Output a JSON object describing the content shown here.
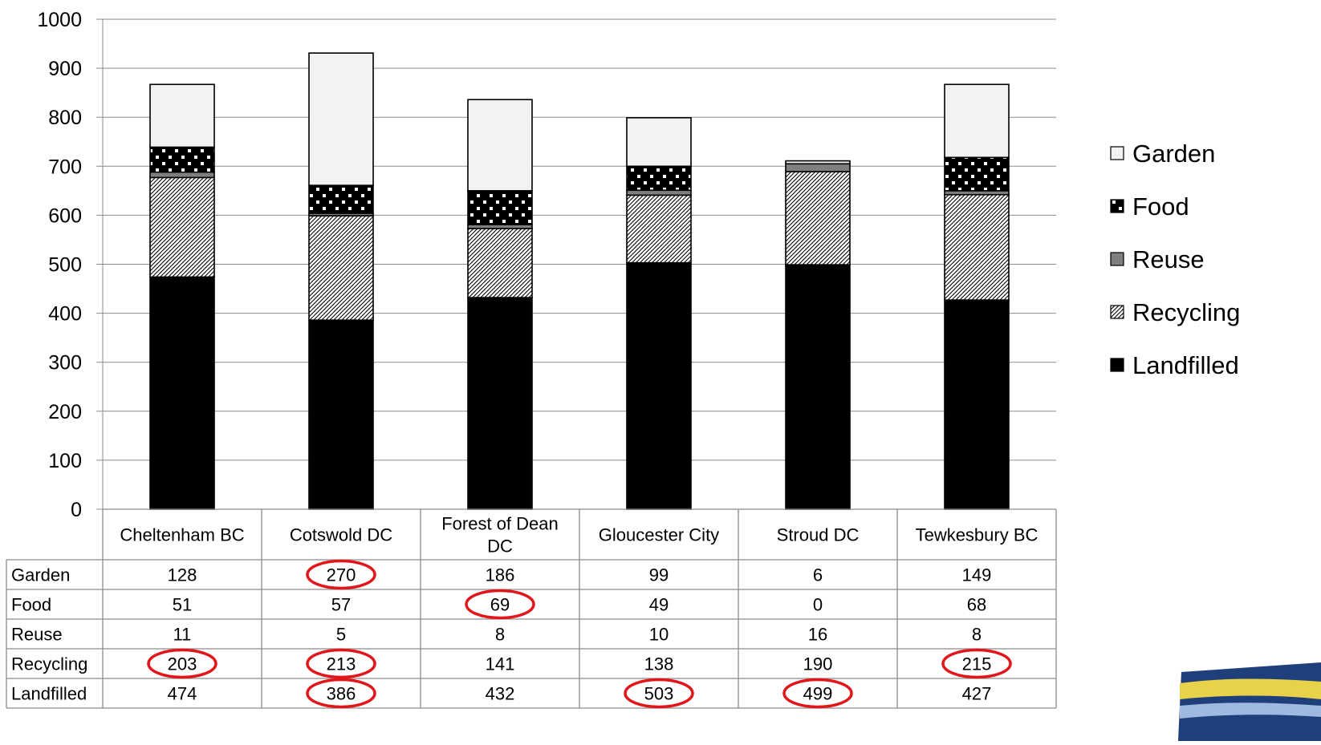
{
  "chart_data": {
    "type": "bar",
    "stacked": true,
    "title": "",
    "xlabel": "",
    "ylabel": "",
    "ylim": [
      0,
      1000
    ],
    "yticks": [
      "0",
      "100",
      "200",
      "300",
      "400",
      "500",
      "600",
      "700",
      "800",
      "900",
      "1000"
    ],
    "grid": true,
    "legend_position": "right",
    "categories": [
      [
        "Cheltenham BC"
      ],
      [
        "Cotswold DC"
      ],
      [
        "Forest of Dean",
        "DC"
      ],
      [
        "Gloucester City"
      ],
      [
        "Stroud DC"
      ],
      [
        "Tewkesbury BC"
      ]
    ],
    "series": [
      {
        "name": "Landfilled",
        "pattern": "solid-black",
        "values": [
          474,
          386,
          432,
          503,
          499,
          427
        ],
        "circled": [
          false,
          true,
          false,
          true,
          true,
          false
        ]
      },
      {
        "name": "Recycling",
        "pattern": "diagonal-hatch",
        "values": [
          203,
          213,
          141,
          138,
          190,
          215
        ],
        "circled": [
          true,
          true,
          false,
          false,
          false,
          true
        ]
      },
      {
        "name": "Reuse",
        "pattern": "grey",
        "values": [
          11,
          5,
          8,
          10,
          16,
          8
        ],
        "circled": [
          false,
          false,
          false,
          false,
          false,
          false
        ]
      },
      {
        "name": "Food",
        "pattern": "checker",
        "values": [
          51,
          57,
          69,
          49,
          0,
          68
        ],
        "circled": [
          false,
          false,
          true,
          false,
          false,
          false
        ]
      },
      {
        "name": "Garden",
        "pattern": "light-grey",
        "values": [
          128,
          270,
          186,
          99,
          6,
          149
        ],
        "circled": [
          false,
          true,
          false,
          false,
          false,
          false
        ]
      }
    ],
    "table_row_order": [
      "Garden",
      "Food",
      "Reuse",
      "Recycling",
      "Landfilled"
    ],
    "legend_order": [
      "Garden",
      "Food",
      "Reuse",
      "Recycling",
      "Landfilled"
    ],
    "colors": {
      "highlight": "#e2151b",
      "gridline": "#8c8c8c",
      "garden": "#f2f2f2",
      "reuse": "#7f7f7f"
    }
  }
}
